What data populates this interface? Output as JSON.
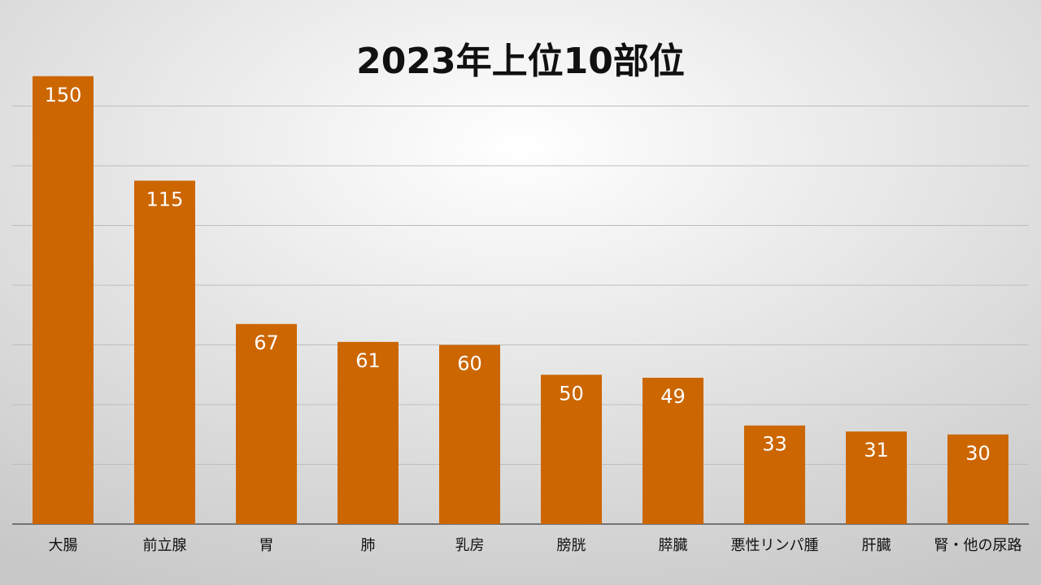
{
  "chart_data": {
    "type": "bar",
    "title": "2023年上位10部位",
    "categories": [
      "大腸",
      "前立腺",
      "胃",
      "肺",
      "乳房",
      "膀胱",
      "膵臓",
      "悪性リンパ腫",
      "肝臓",
      "腎・他の尿路"
    ],
    "values": [
      150,
      115,
      67,
      61,
      60,
      50,
      49,
      33,
      31,
      30
    ],
    "color": "#cc6600",
    "ylim": [
      0,
      160
    ],
    "yticks": [
      0,
      20,
      40,
      60,
      80,
      100,
      120,
      140
    ],
    "grid": true
  }
}
